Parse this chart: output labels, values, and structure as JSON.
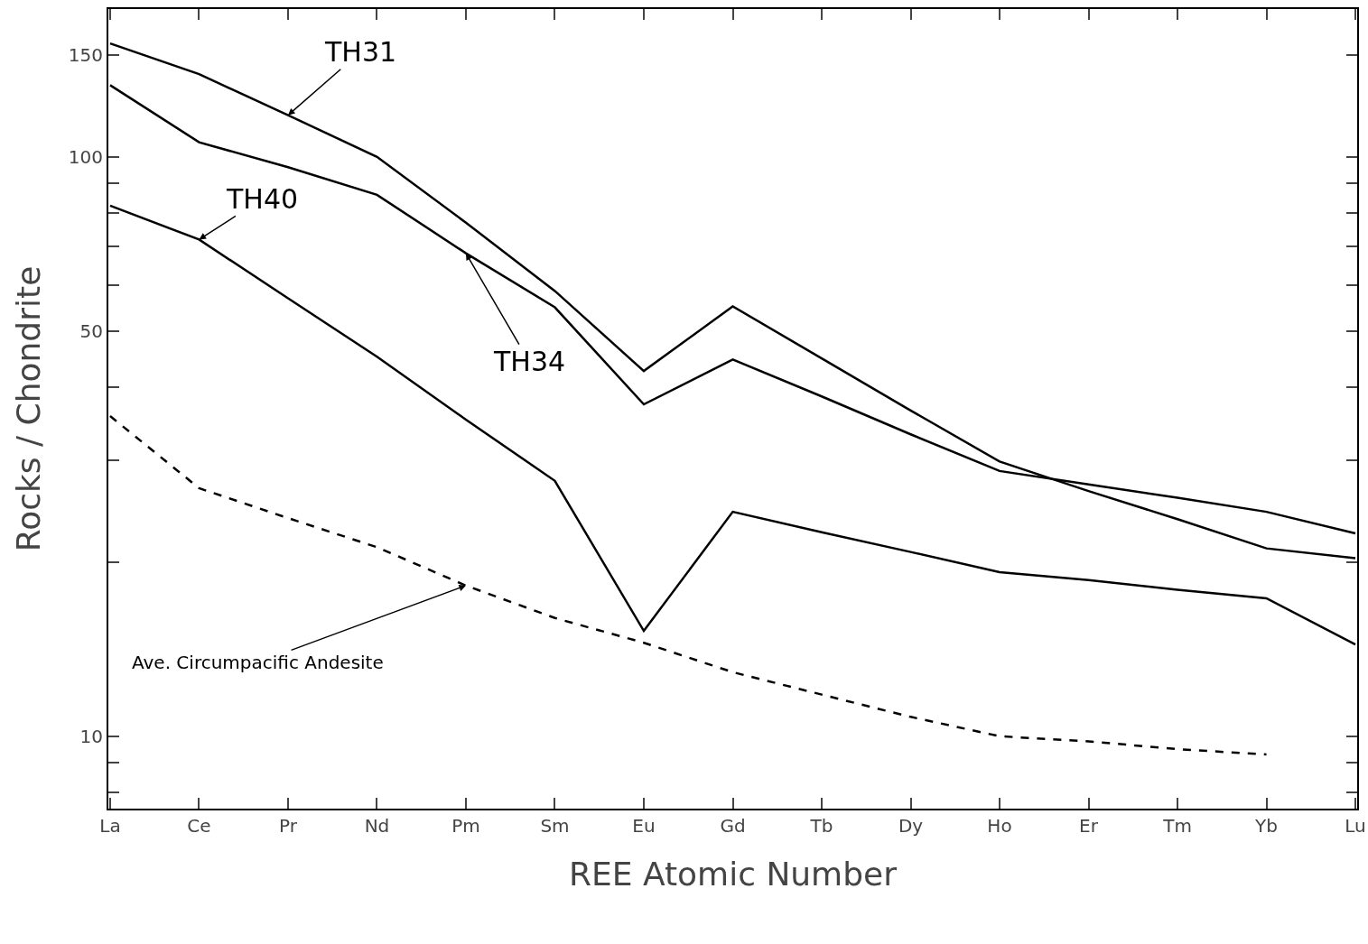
{
  "chart_data": {
    "type": "line",
    "xlabel": "REE Atomic Number",
    "ylabel": "Rocks / Chondrite",
    "categories": [
      "La",
      "Ce",
      "Pr",
      "Nd",
      "Pm",
      "Sm",
      "Eu",
      "Gd",
      "Tb",
      "Dy",
      "Ho",
      "Er",
      "Tm",
      "Yb",
      "Lu"
    ],
    "log": true,
    "ylim": [
      7.5,
      180
    ],
    "yticks": [
      {
        "value": 8,
        "label": null
      },
      {
        "value": 9,
        "label": null
      },
      10,
      {
        "value": 20,
        "label": null
      },
      {
        "value": 30,
        "label": null
      },
      {
        "value": 40,
        "label": null
      },
      50,
      {
        "value": 60,
        "label": null
      },
      {
        "value": 70,
        "label": null
      },
      {
        "value": 80,
        "label": null
      },
      {
        "value": 90,
        "label": null
      },
      100,
      150
    ],
    "grid": false,
    "legend": false,
    "marker": "none",
    "series": [
      {
        "name": "TH31",
        "color": "#000000",
        "line_style": "solid",
        "values": [
          157,
          139,
          118,
          100,
          77,
          58.7,
          42.7,
          55.2,
          44.9,
          36.5,
          29.8,
          26.5,
          23.7,
          21.1,
          20.3
        ]
      },
      {
        "name": "TH34",
        "color": "#000000",
        "line_style": "solid",
        "values": [
          133,
          106,
          96,
          86,
          68.2,
          55,
          37.4,
          44.7,
          38.6,
          33.2,
          28.7,
          27.2,
          25.8,
          24.4,
          22.4
        ]
      },
      {
        "name": "TH40",
        "color": "#000000",
        "line_style": "solid",
        "values": [
          82.4,
          72,
          57,
          45.2,
          35.2,
          27.6,
          15.2,
          24.4,
          22.5,
          20.8,
          19.2,
          18.6,
          17.9,
          17.3,
          14.4
        ]
      },
      {
        "name": "Ave. Circumpacific Andesite",
        "color": "#000000",
        "line_style": "dashed",
        "values": [
          35.7,
          26.8,
          23.8,
          21.2,
          18.2,
          16,
          14.5,
          12.9,
          11.8,
          10.8,
          10,
          9.8,
          9.5,
          9.3,
          null
        ]
      }
    ]
  }
}
